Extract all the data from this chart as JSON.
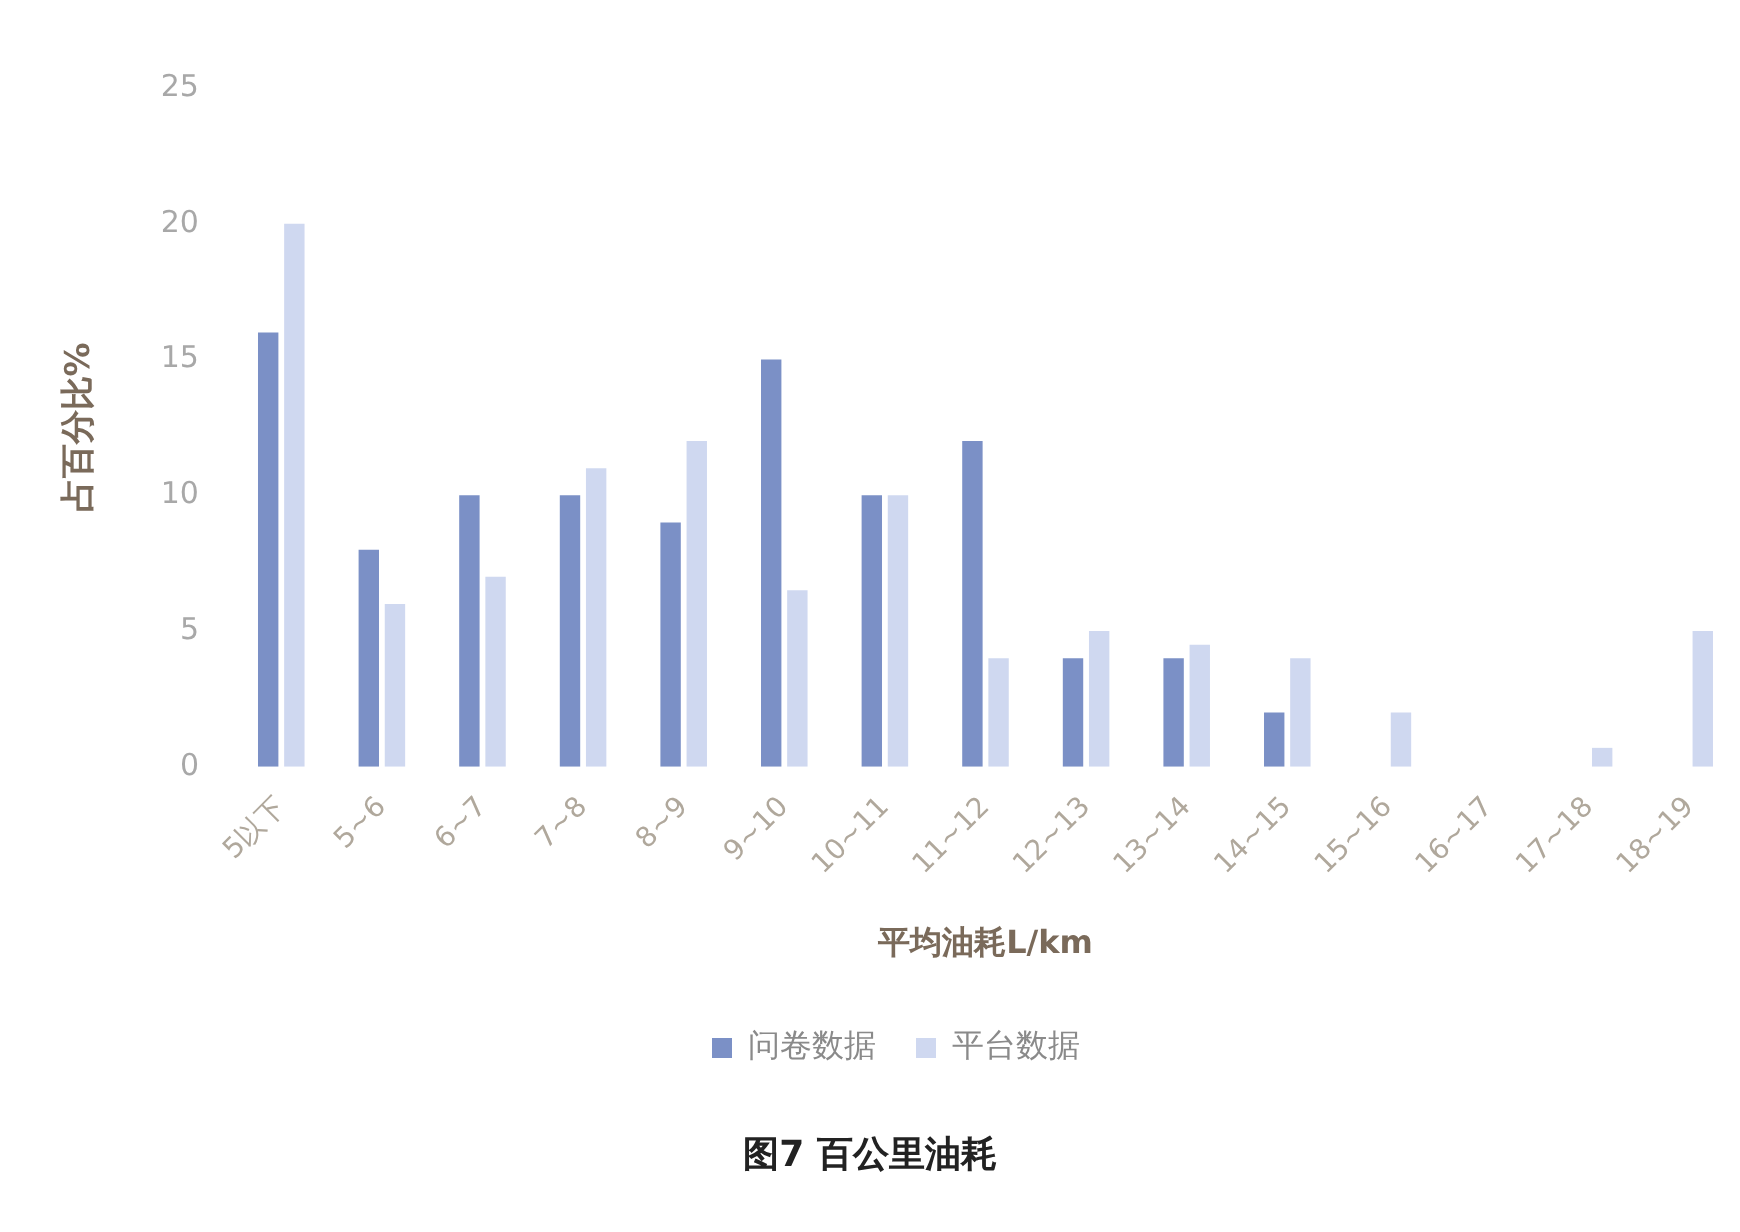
{
  "chart_data": {
    "type": "bar",
    "title": "图7  百公里油耗",
    "xlabel": "平均油耗L/km",
    "ylabel": "占百分比%",
    "categories": [
      "5以下",
      "5~6",
      "6~7",
      "7~8",
      "8~9",
      "9~10",
      "10~11",
      "11~12",
      "12~13",
      "13~14",
      "14~15",
      "15~16",
      "16~17",
      "17~18",
      "18~19"
    ],
    "series": [
      {
        "name": "问卷数据",
        "color": "#7b90c6",
        "values": [
          16,
          8,
          10,
          10,
          9,
          15,
          10,
          12,
          4,
          4,
          2,
          null,
          null,
          null,
          null
        ]
      },
      {
        "name": "平台数据",
        "color": "#cfd8f0",
        "values": [
          20,
          6,
          7,
          11,
          12,
          6.5,
          10,
          4,
          5,
          4.5,
          4,
          2,
          null,
          0.7,
          5
        ]
      }
    ],
    "ylim": [
      0,
      25
    ],
    "yticks": [
      0,
      5,
      10,
      15,
      20,
      25
    ],
    "grid": false,
    "legend": "bottom"
  }
}
